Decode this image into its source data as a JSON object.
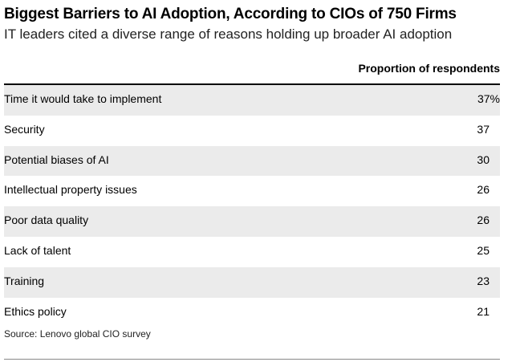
{
  "title": "Biggest Barriers to AI Adoption, According to CIOs of 750 Firms",
  "subtitle": "IT leaders cited a diverse range of reasons holding up broader AI adoption",
  "source": "Source: Lenovo global CIO survey",
  "colors": {
    "shaded_row": "#ebebeb",
    "rule": "#000000",
    "bottom_rule": "#888888"
  },
  "chart_data": {
    "type": "table",
    "title": "Biggest Barriers to AI Adoption, According to CIOs of 750 Firms",
    "subtitle": "IT leaders cited a diverse range of reasons holding up broader AI adoption",
    "column_header": "Proportion of respondents",
    "categories": [
      "Time it would take to implement",
      "Security",
      "Potential biases of AI",
      "Intellectual property issues",
      "Poor data quality",
      "Lack of talent",
      "Training",
      "Ethics policy"
    ],
    "values": [
      37,
      37,
      30,
      26,
      26,
      25,
      23,
      21
    ],
    "value_labels": [
      "37%",
      "37",
      "30",
      "26",
      "26",
      "25",
      "23",
      "21"
    ],
    "unit": "%"
  }
}
